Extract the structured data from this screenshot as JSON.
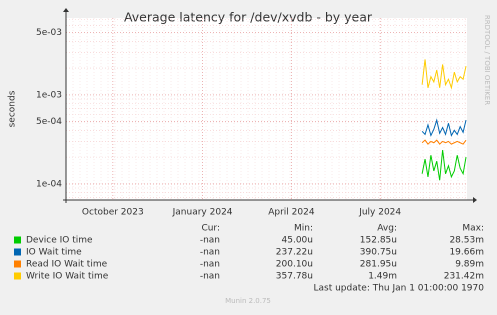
{
  "chart_data": {
    "type": "line",
    "title": "Average latency for /dev/xvdb - by year",
    "y_label": "seconds",
    "side_note": "RRDTOOL / TOBI OETIKER",
    "log_scale": true,
    "grid": true,
    "ylim": [
      6.6e-05,
      0.0073
    ],
    "yticks": [
      {
        "value": 0.005,
        "label": "5e-03"
      },
      {
        "value": 0.001,
        "label": "1e-03"
      },
      {
        "value": 0.0005,
        "label": "5e-04"
      },
      {
        "value": 0.0001,
        "label": "1e-04"
      }
    ],
    "xlim": [
      "2023-08-14",
      "2024-09-28"
    ],
    "xticks": [
      {
        "value": "2023-10-01",
        "label": "October 2023"
      },
      {
        "value": "2024-01-01",
        "label": "January 2024"
      },
      {
        "value": "2024-04-01",
        "label": "April 2024"
      },
      {
        "value": "2024-07-01",
        "label": "July 2024"
      }
    ],
    "x": [
      "2024-08-13",
      "2024-08-16",
      "2024-08-19",
      "2024-08-22",
      "2024-08-25",
      "2024-08-28",
      "2024-08-31",
      "2024-09-03",
      "2024-09-06",
      "2024-09-09",
      "2024-09-12",
      "2024-09-15",
      "2024-09-18",
      "2024-09-21",
      "2024-09-24",
      "2024-09-27"
    ],
    "stat_headers": [
      "Cur:",
      "Min:",
      "Avg:",
      "Max:"
    ],
    "series": [
      {
        "name": "Device IO time",
        "color": "#00cc00",
        "stats": [
          "-nan",
          "45.00u",
          "152.85u",
          "28.53m"
        ],
        "values": [
          0.00013,
          0.00019,
          0.00012,
          0.00021,
          0.00014,
          0.00018,
          0.00011,
          0.00024,
          0.00013,
          0.00016,
          0.00012,
          0.00014,
          0.00021,
          0.00015,
          0.00013,
          0.0002
        ]
      },
      {
        "name": "IO Wait time",
        "color": "#0066b3",
        "stats": [
          "-nan",
          "237.22u",
          "390.75u",
          "19.66m"
        ],
        "values": [
          0.00039,
          0.00036,
          0.00046,
          0.00035,
          0.00041,
          0.00052,
          0.00037,
          0.00043,
          0.00036,
          0.00048,
          0.00035,
          0.0004,
          0.00036,
          0.00044,
          0.00038,
          0.00052
        ]
      },
      {
        "name": "Read IO Wait time",
        "color": "#ff8000",
        "stats": [
          "-nan",
          "200.10u",
          "281.95u",
          "9.89m"
        ],
        "values": [
          0.00029,
          0.00031,
          0.00028,
          0.0003,
          0.00029,
          0.00031,
          0.00028,
          0.0003,
          0.00029,
          0.0003,
          0.00028,
          0.00029,
          0.0003,
          0.00029,
          0.00028,
          0.00031
        ]
      },
      {
        "name": "Write IO Wait time",
        "color": "#ffcc00",
        "stats": [
          "-nan",
          "357.78u",
          "1.49m",
          "231.42m"
        ],
        "values": [
          0.0013,
          0.0025,
          0.0012,
          0.0016,
          0.0014,
          0.0019,
          0.0012,
          0.0022,
          0.0013,
          0.0015,
          0.0012,
          0.0018,
          0.0014,
          0.0016,
          0.0015,
          0.0021
        ]
      }
    ],
    "last_update": "Last update: Thu Jan  1 01:00:00 1970",
    "footer": "Munin 2.0.75"
  }
}
